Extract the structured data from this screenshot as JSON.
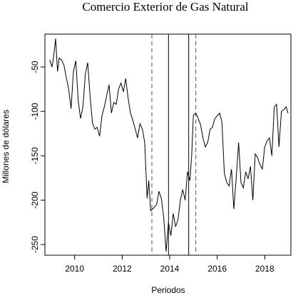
{
  "chart_data": {
    "type": "line",
    "title": "Comercio Exterior de Gas Natural",
    "xlabel": "Periodos",
    "ylabel": "Millones de dólares",
    "xlim": [
      2008.75,
      2019.1
    ],
    "ylim": [
      -262,
      -13
    ],
    "x_ticks": [
      2010,
      2012,
      2014,
      2016,
      2018
    ],
    "y_ticks": [
      -50,
      -100,
      -150,
      -200,
      -250
    ],
    "grid": false,
    "legend": "none",
    "vlines_solid": [
      2013.95,
      2014.8
    ],
    "vlines_dashed": [
      2013.25,
      2015.1
    ],
    "line_color": "#000000",
    "series": [
      {
        "x": [
          2008.95,
          2009.05,
          2009.12,
          2009.2,
          2009.28,
          2009.35,
          2009.45,
          2009.55,
          2009.65,
          2009.75,
          2009.85,
          2009.95,
          2010.05,
          2010.15,
          2010.25,
          2010.35,
          2010.45,
          2010.55,
          2010.65,
          2010.75,
          2010.85,
          2010.95,
          2011.05,
          2011.15,
          2011.25,
          2011.35,
          2011.45,
          2011.55,
          2011.65,
          2011.75,
          2011.85,
          2011.95,
          2012.05,
          2012.15,
          2012.25,
          2012.35,
          2012.45,
          2012.55,
          2012.65,
          2012.75,
          2012.85,
          2012.95,
          2013.05,
          2013.12,
          2013.2,
          2013.28,
          2013.35,
          2013.45,
          2013.55,
          2013.65,
          2013.75,
          2013.85,
          2013.95,
          2014.05,
          2014.15,
          2014.25,
          2014.35,
          2014.45,
          2014.55,
          2014.65,
          2014.75,
          2014.85,
          2014.92,
          2015.0,
          2015.1,
          2015.2,
          2015.3,
          2015.4,
          2015.5,
          2015.6,
          2015.7,
          2015.8,
          2015.9,
          2016.0,
          2016.1,
          2016.2,
          2016.3,
          2016.4,
          2016.5,
          2016.6,
          2016.7,
          2016.8,
          2016.9,
          2017.0,
          2017.1,
          2017.2,
          2017.3,
          2017.4,
          2017.5,
          2017.6,
          2017.7,
          2017.8,
          2017.9,
          2018.0,
          2018.1,
          2018.2,
          2018.3,
          2018.4,
          2018.5,
          2018.6,
          2018.7,
          2018.8,
          2018.9,
          2018.98
        ],
        "values": [
          -42,
          -50,
          -38,
          -18,
          -55,
          -40,
          -42,
          -48,
          -62,
          -75,
          -97,
          -55,
          -43,
          -88,
          -108,
          -95,
          -58,
          -45,
          -82,
          -113,
          -120,
          -118,
          -128,
          -105,
          -95,
          -82,
          -70,
          -102,
          -90,
          -92,
          -75,
          -68,
          -78,
          -63,
          -85,
          -102,
          -110,
          -120,
          -130,
          -114,
          -120,
          -135,
          -198,
          -178,
          -212,
          -210,
          -208,
          -205,
          -190,
          -198,
          -220,
          -258,
          -225,
          -240,
          -215,
          -230,
          -222,
          -200,
          -188,
          -200,
          -168,
          -178,
          -152,
          -104,
          -102,
          -108,
          -115,
          -130,
          -140,
          -135,
          -120,
          -118,
          -108,
          -105,
          -102,
          -112,
          -170,
          -180,
          -184,
          -165,
          -210,
          -175,
          -135,
          -180,
          -186,
          -168,
          -176,
          -162,
          -200,
          -148,
          -152,
          -160,
          -165,
          -140,
          -133,
          -130,
          -150,
          -95,
          -92,
          -140,
          -100,
          -98,
          -95,
          -102
        ]
      }
    ]
  }
}
